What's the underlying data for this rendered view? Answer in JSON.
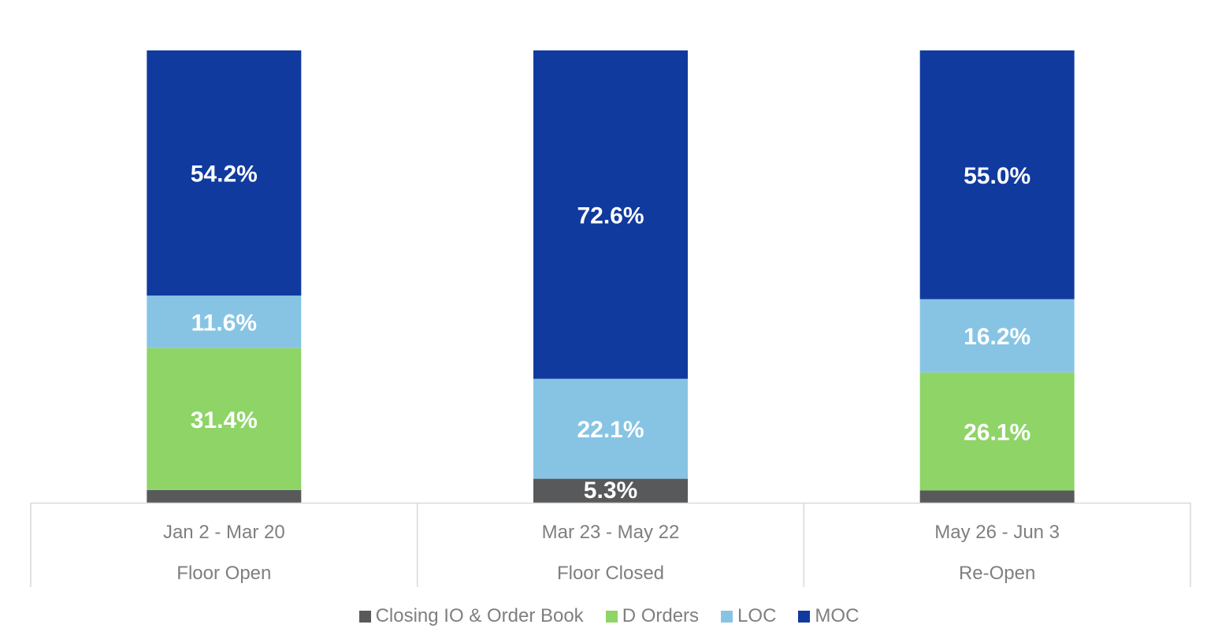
{
  "chart_data": {
    "type": "bar",
    "stacked": true,
    "categories": [
      [
        "Jan 2 - Mar 20",
        "Floor Open"
      ],
      [
        "Mar 23 - May 22",
        "Floor Closed"
      ],
      [
        "May 26 - Jun 3",
        "Re-Open"
      ]
    ],
    "series": [
      {
        "name": "Closing IO & Order Book",
        "color": "#58595b",
        "values": [
          2.8,
          5.3,
          2.7
        ],
        "labels": [
          "",
          "5.3%",
          ""
        ]
      },
      {
        "name": "D Orders",
        "color": "#8ed467",
        "values": [
          31.4,
          0,
          26.1
        ],
        "labels": [
          "31.4%",
          "",
          "26.1%"
        ]
      },
      {
        "name": "LOC",
        "color": "#87c4e4",
        "values": [
          11.6,
          22.1,
          16.2
        ],
        "labels": [
          "11.6%",
          "22.1%",
          "16.2%"
        ]
      },
      {
        "name": "MOC",
        "color": "#103a9e",
        "values": [
          54.2,
          72.6,
          55.0
        ],
        "labels": [
          "54.2%",
          "72.6%",
          "55.0%"
        ]
      }
    ],
    "ylim": [
      0,
      100
    ],
    "legend": "bottom",
    "grid": false
  }
}
